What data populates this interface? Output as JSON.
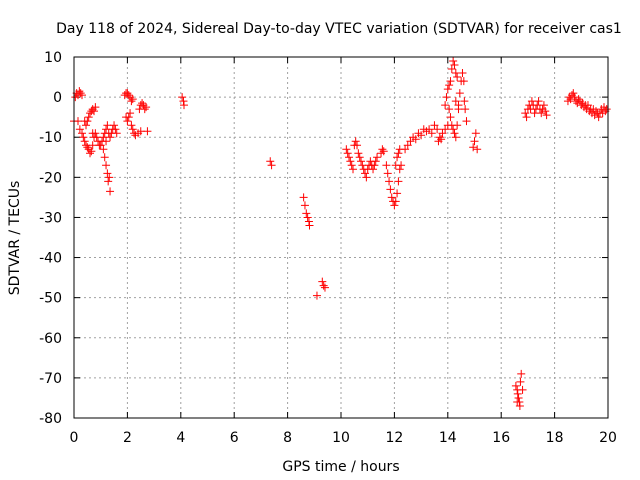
{
  "chart_data": {
    "type": "scatter",
    "title": "Day 118 of 2024, Sidereal Day-to-day VTEC variation (SDTVAR) for receiver cas1",
    "xlabel": "GPS time / hours",
    "ylabel": "SDTVAR / TECUs",
    "xlim": [
      0,
      20
    ],
    "ylim": [
      -80,
      10
    ],
    "xticks": [
      "0",
      "2",
      "4",
      "6",
      "8",
      "10",
      "12",
      "14",
      "16",
      "18",
      "20"
    ],
    "yticks": [
      "10",
      "0",
      "-10",
      "-20",
      "-30",
      "-40",
      "-50",
      "-60",
      "-70",
      "-80"
    ],
    "grid": true,
    "marker": "+",
    "colors": {
      "series": "#ff0000",
      "grid": "#a0a0a0",
      "axis": "#000000"
    },
    "series": [
      {
        "name": "cas1",
        "points": [
          [
            0.0,
            -6
          ],
          [
            0.05,
            0
          ],
          [
            0.1,
            1
          ],
          [
            0.15,
            0.5
          ],
          [
            0.2,
            1.5
          ],
          [
            0.25,
            1
          ],
          [
            0.3,
            0.5
          ],
          [
            0.15,
            -6
          ],
          [
            0.22,
            -8
          ],
          [
            0.3,
            -9
          ],
          [
            0.35,
            -10
          ],
          [
            0.4,
            -11
          ],
          [
            0.45,
            -12
          ],
          [
            0.5,
            -12.5
          ],
          [
            0.55,
            -13
          ],
          [
            0.6,
            -14
          ],
          [
            0.65,
            -13.5
          ],
          [
            0.7,
            -12
          ],
          [
            0.4,
            -6
          ],
          [
            0.45,
            -7
          ],
          [
            0.5,
            -6
          ],
          [
            0.55,
            -5
          ],
          [
            0.6,
            -4
          ],
          [
            0.65,
            -3.5
          ],
          [
            0.7,
            -3
          ],
          [
            0.75,
            -3.5
          ],
          [
            0.8,
            -2.5
          ],
          [
            0.7,
            -9
          ],
          [
            0.75,
            -10
          ],
          [
            0.8,
            -9
          ],
          [
            0.85,
            -10
          ],
          [
            0.9,
            -11
          ],
          [
            0.95,
            -12
          ],
          [
            1.0,
            -12
          ],
          [
            1.05,
            -11
          ],
          [
            1.1,
            -10
          ],
          [
            1.15,
            -9
          ],
          [
            1.2,
            -8
          ],
          [
            1.25,
            -7
          ],
          [
            1.3,
            -9
          ],
          [
            1.35,
            -10
          ],
          [
            1.4,
            -9
          ],
          [
            1.45,
            -8
          ],
          [
            1.5,
            -7
          ],
          [
            1.55,
            -8
          ],
          [
            1.6,
            -9
          ],
          [
            1.1,
            -13
          ],
          [
            1.15,
            -15
          ],
          [
            1.2,
            -17
          ],
          [
            1.25,
            -19
          ],
          [
            1.28,
            -21
          ],
          [
            1.32,
            -20
          ],
          [
            1.35,
            -23.5
          ],
          [
            1.2,
            -11
          ],
          [
            1.9,
            0.5
          ],
          [
            1.95,
            1
          ],
          [
            2.0,
            1
          ],
          [
            2.05,
            0.5
          ],
          [
            2.1,
            0
          ],
          [
            2.15,
            -1
          ],
          [
            2.2,
            -0.5
          ],
          [
            1.95,
            -5
          ],
          [
            2.0,
            -6
          ],
          [
            2.05,
            -5
          ],
          [
            2.1,
            -4
          ],
          [
            2.15,
            -7
          ],
          [
            2.2,
            -8
          ],
          [
            2.25,
            -9
          ],
          [
            2.3,
            -9.5
          ],
          [
            2.4,
            -9
          ],
          [
            2.5,
            -8.5
          ],
          [
            2.45,
            -3
          ],
          [
            2.5,
            -2
          ],
          [
            2.55,
            -1.5
          ],
          [
            2.6,
            -2
          ],
          [
            2.65,
            -3
          ],
          [
            2.7,
            -2.5
          ],
          [
            2.75,
            -8.5
          ],
          [
            4.05,
            0
          ],
          [
            4.1,
            -1
          ],
          [
            4.12,
            -2
          ],
          [
            7.35,
            -16
          ],
          [
            7.4,
            -17
          ],
          [
            8.6,
            -25
          ],
          [
            8.65,
            -27
          ],
          [
            8.7,
            -29
          ],
          [
            8.75,
            -30
          ],
          [
            8.8,
            -31
          ],
          [
            8.82,
            -32
          ],
          [
            9.1,
            -49.5
          ],
          [
            9.3,
            -46
          ],
          [
            9.35,
            -47
          ],
          [
            9.4,
            -47.5
          ],
          [
            10.2,
            -13
          ],
          [
            10.25,
            -14
          ],
          [
            10.3,
            -15
          ],
          [
            10.35,
            -16
          ],
          [
            10.4,
            -17
          ],
          [
            10.45,
            -18
          ],
          [
            10.5,
            -12
          ],
          [
            10.55,
            -11
          ],
          [
            10.6,
            -12
          ],
          [
            10.65,
            -14
          ],
          [
            10.7,
            -15
          ],
          [
            10.75,
            -16
          ],
          [
            10.8,
            -17
          ],
          [
            10.85,
            -18
          ],
          [
            10.9,
            -19
          ],
          [
            10.95,
            -20
          ],
          [
            11.0,
            -18
          ],
          [
            11.05,
            -17
          ],
          [
            11.1,
            -16
          ],
          [
            11.15,
            -17
          ],
          [
            11.2,
            -18
          ],
          [
            11.25,
            -17
          ],
          [
            11.3,
            -16
          ],
          [
            11.35,
            -15
          ],
          [
            11.5,
            -14
          ],
          [
            11.55,
            -13
          ],
          [
            11.6,
            -13.5
          ],
          [
            11.7,
            -17
          ],
          [
            11.75,
            -19
          ],
          [
            11.8,
            -21
          ],
          [
            11.85,
            -23
          ],
          [
            11.9,
            -25
          ],
          [
            11.95,
            -26
          ],
          [
            12.0,
            -27
          ],
          [
            12.05,
            -26
          ],
          [
            12.1,
            -24
          ],
          [
            12.15,
            -21
          ],
          [
            12.2,
            -18
          ],
          [
            12.05,
            -17
          ],
          [
            12.1,
            -15
          ],
          [
            12.15,
            -14
          ],
          [
            12.2,
            -13
          ],
          [
            12.25,
            -17
          ],
          [
            12.4,
            -13
          ],
          [
            12.5,
            -12
          ],
          [
            12.6,
            -11
          ],
          [
            12.7,
            -10
          ],
          [
            12.8,
            -10.5
          ],
          [
            12.9,
            -9
          ],
          [
            13.0,
            -9.5
          ],
          [
            13.1,
            -8
          ],
          [
            13.2,
            -8.5
          ],
          [
            13.3,
            -8
          ],
          [
            13.4,
            -9
          ],
          [
            13.5,
            -7
          ],
          [
            13.6,
            -8
          ],
          [
            13.7,
            -10
          ],
          [
            13.8,
            -9
          ],
          [
            13.9,
            -8
          ],
          [
            14.0,
            -7
          ],
          [
            13.65,
            -11
          ],
          [
            13.75,
            -10.5
          ],
          [
            13.9,
            -2
          ],
          [
            13.95,
            0
          ],
          [
            14.0,
            2
          ],
          [
            14.05,
            3
          ],
          [
            14.1,
            4
          ],
          [
            14.15,
            7
          ],
          [
            14.2,
            9
          ],
          [
            14.25,
            8
          ],
          [
            14.3,
            6
          ],
          [
            14.35,
            5
          ],
          [
            14.05,
            -3
          ],
          [
            14.1,
            -5
          ],
          [
            14.15,
            -7
          ],
          [
            14.2,
            -8
          ],
          [
            14.25,
            -9
          ],
          [
            14.3,
            -10
          ],
          [
            14.35,
            -7
          ],
          [
            14.4,
            -3
          ],
          [
            14.45,
            1
          ],
          [
            14.5,
            4
          ],
          [
            14.55,
            6
          ],
          [
            14.6,
            4
          ],
          [
            14.62,
            -1
          ],
          [
            14.65,
            -3
          ],
          [
            14.7,
            -6
          ],
          [
            14.3,
            -1
          ],
          [
            14.4,
            -2
          ],
          [
            14.95,
            -12.5
          ],
          [
            15.0,
            -11
          ],
          [
            15.05,
            -9
          ],
          [
            15.1,
            -13
          ],
          [
            16.55,
            -72
          ],
          [
            16.6,
            -73
          ],
          [
            16.62,
            -74
          ],
          [
            16.65,
            -75
          ],
          [
            16.68,
            -76
          ],
          [
            16.7,
            -77
          ],
          [
            16.72,
            -71
          ],
          [
            16.75,
            -69
          ],
          [
            16.8,
            -73
          ],
          [
            16.6,
            -76
          ],
          [
            16.9,
            -4
          ],
          [
            16.95,
            -5
          ],
          [
            17.0,
            -3
          ],
          [
            17.05,
            -2
          ],
          [
            17.1,
            -3
          ],
          [
            17.15,
            -1
          ],
          [
            17.2,
            -2
          ],
          [
            17.25,
            -4
          ],
          [
            17.3,
            -3
          ],
          [
            17.35,
            -2
          ],
          [
            17.4,
            -1
          ],
          [
            17.45,
            -3
          ],
          [
            17.5,
            -4
          ],
          [
            17.55,
            -3
          ],
          [
            17.6,
            -2
          ],
          [
            17.65,
            -3.5
          ],
          [
            17.7,
            -4.5
          ],
          [
            18.5,
            -1
          ],
          [
            18.55,
            0
          ],
          [
            18.6,
            -0.5
          ],
          [
            18.65,
            0.5
          ],
          [
            18.7,
            1
          ],
          [
            18.75,
            0
          ],
          [
            18.8,
            -1
          ],
          [
            18.85,
            -1.5
          ],
          [
            18.9,
            -0.5
          ],
          [
            18.95,
            -1
          ],
          [
            19.0,
            -2
          ],
          [
            19.05,
            -1.5
          ],
          [
            19.1,
            -2.5
          ],
          [
            19.15,
            -2
          ],
          [
            19.2,
            -3
          ],
          [
            19.25,
            -2
          ],
          [
            19.3,
            -3.5
          ],
          [
            19.35,
            -3
          ],
          [
            19.4,
            -4
          ],
          [
            19.45,
            -3
          ],
          [
            19.5,
            -4.5
          ],
          [
            19.55,
            -3.5
          ],
          [
            19.6,
            -4
          ],
          [
            19.65,
            -5
          ],
          [
            19.7,
            -4
          ],
          [
            19.75,
            -3
          ],
          [
            19.8,
            -4
          ],
          [
            19.85,
            -2.5
          ],
          [
            19.9,
            -3.5
          ],
          [
            19.95,
            -3
          ]
        ]
      }
    ]
  }
}
